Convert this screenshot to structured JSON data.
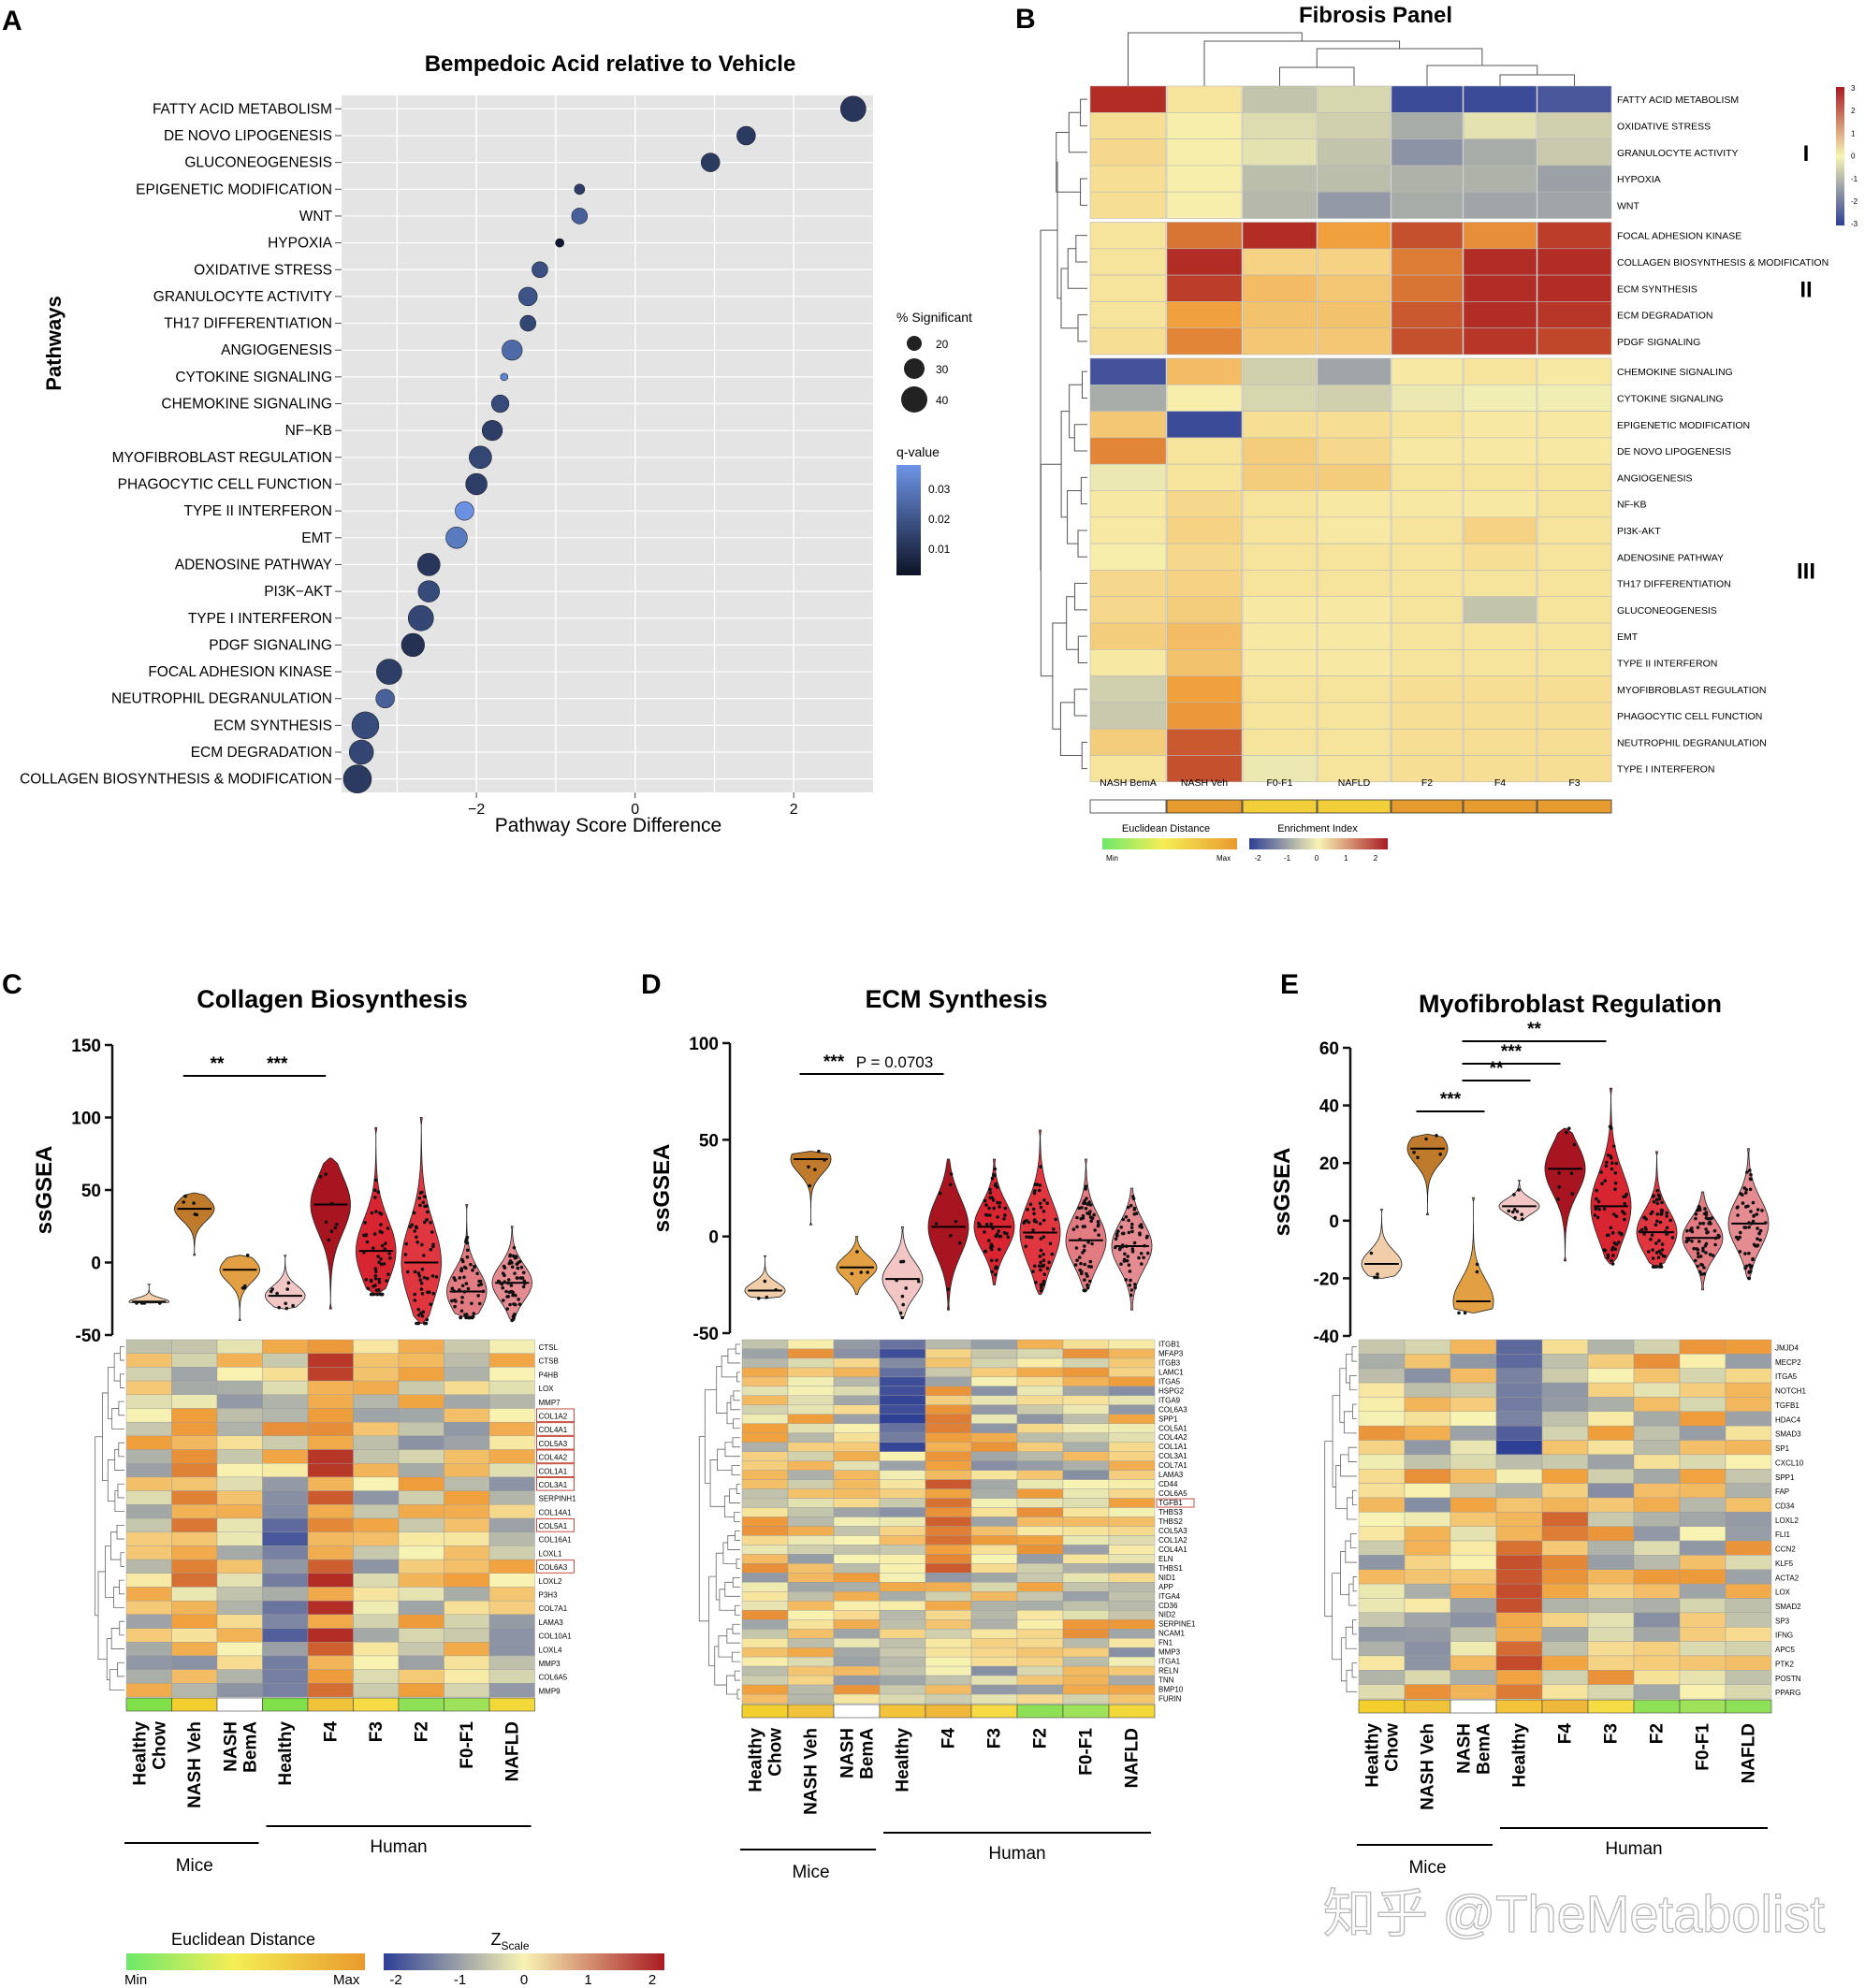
{
  "panelA": {
    "letter": "A",
    "chart_data": {
      "type": "scatter",
      "title": "Bempedoic Acid relative to Vehicle",
      "xlabel": "Pathway Score Difference",
      "ylabel": "Pathways",
      "xlim": [
        -3.7,
        3.0
      ],
      "xticks": [
        -2,
        0,
        2
      ],
      "xtick_labels": [
        "−2",
        "0",
        "2"
      ],
      "grid": true,
      "categories": [
        "FATTY ACID METABOLISM",
        "DE NOVO LIPOGENESIS",
        "GLUCONEOGENESIS",
        "EPIGENETIC MODIFICATION",
        "WNT",
        "HYPOXIA",
        "OXIDATIVE STRESS",
        "GRANULOCYTE ACTIVITY",
        "TH17 DIFFERENTIATION",
        "ANGIOGENESIS",
        "CYTOKINE SIGNALING",
        "CHEMOKINE SIGNALING",
        "NF−KB",
        "MYOFIBROBLAST REGULATION",
        "PHAGOCYTIC CELL FUNCTION",
        "TYPE II INTERFERON",
        "EMT",
        "ADENOSINE PATHWAY",
        "PI3K−AKT",
        "TYPE I INTERFERON",
        "PDGF SIGNALING",
        "FOCAL ADHESION KINASE",
        "NEUTROPHIL DEGRANULATION",
        "ECM SYNTHESIS",
        "ECM DEGRADATION",
        "COLLAGEN BIOSYNTHESIS & MODIFICATION"
      ],
      "x": [
        2.75,
        1.4,
        0.95,
        -0.7,
        -0.7,
        -0.95,
        -1.2,
        -1.35,
        -1.35,
        -1.55,
        -1.65,
        -1.7,
        -1.8,
        -1.95,
        -2.0,
        -2.15,
        -2.25,
        -2.6,
        -2.6,
        -2.7,
        -2.8,
        -3.1,
        -3.15,
        -3.4,
        -3.45,
        -3.5
      ],
      "pct_significant": [
        42,
        30,
        30,
        15,
        25,
        12,
        25,
        30,
        25,
        33,
        10,
        28,
        33,
        37,
        35,
        30,
        35,
        37,
        35,
        42,
        38,
        42,
        30,
        45,
        40,
        47
      ],
      "qvalue": [
        0.012,
        0.013,
        0.013,
        0.014,
        0.022,
        0.005,
        0.018,
        0.019,
        0.016,
        0.024,
        0.03,
        0.017,
        0.014,
        0.016,
        0.014,
        0.033,
        0.028,
        0.012,
        0.017,
        0.016,
        0.011,
        0.014,
        0.022,
        0.017,
        0.016,
        0.013
      ],
      "legend_size_title": "% Significant",
      "legend_size_values": [
        "20",
        "30",
        "40"
      ],
      "legend_color_title": "q-value",
      "legend_color_ticks": [
        "0.03",
        "0.02",
        "0.01"
      ],
      "legend_placement": "right"
    }
  },
  "panelB": {
    "letter": "B",
    "chart_data": {
      "type": "heatmap",
      "title": "Fibrosis Panel",
      "columns": [
        "NASH BemA",
        "NASH Veh",
        "F0-F1",
        "NAFLD",
        "F2",
        "F4",
        "F3"
      ],
      "rows": [
        "FATTY ACID METABOLISM",
        "OXIDATIVE STRESS",
        "GRANULOCYTE ACTIVITY",
        "HYPOXIA",
        "WNT",
        "FOCAL ADHESION KINASE",
        "COLLAGEN BIOSYNTHESIS & MODIFICATION",
        "ECM SYNTHESIS",
        "ECM DEGRADATION",
        "PDGF SIGNALING",
        "CHEMOKINE SIGNALING",
        "CYTOKINE SIGNALING",
        "EPIGENETIC MODIFICATION",
        "DE NOVO LIPOGENESIS",
        "ANGIOGENESIS",
        "NF-KB",
        "PI3K-AKT",
        "ADENOSINE PATHWAY",
        "TH17 DIFFERENTIATION",
        "GLUCONEOGENESIS",
        "EMT",
        "TYPE II INTERFERON",
        "MYOFIBROBLAST REGULATION",
        "PHAGOCYTIC CELL FUNCTION",
        "NEUTROPHIL DEGRANULATION",
        "TYPE I INTERFERON"
      ],
      "values": [
        [
          2.8,
          0.3,
          -0.8,
          -0.5,
          -2.8,
          -2.8,
          -2.6
        ],
        [
          0.4,
          0.1,
          -0.4,
          -0.6,
          -1.2,
          -0.3,
          -0.6
        ],
        [
          0.5,
          0.1,
          -0.3,
          -0.8,
          -1.6,
          -1.2,
          -0.7
        ],
        [
          0.4,
          0.1,
          -0.9,
          -0.9,
          -1.1,
          -1.1,
          -1.4
        ],
        [
          0.4,
          0.1,
          -1.0,
          -1.5,
          -1.2,
          -1.3,
          -1.3
        ],
        [
          0.3,
          2.0,
          2.8,
          1.5,
          2.4,
          1.7,
          2.6
        ],
        [
          0.3,
          2.8,
          0.6,
          0.6,
          1.9,
          2.8,
          2.8
        ],
        [
          0.3,
          2.6,
          1.0,
          0.8,
          2.0,
          2.8,
          2.8
        ],
        [
          0.3,
          1.5,
          0.9,
          0.9,
          2.3,
          2.8,
          2.7
        ],
        [
          0.4,
          1.8,
          0.8,
          0.8,
          2.4,
          2.7,
          2.5
        ],
        [
          -2.7,
          1.0,
          -0.6,
          -1.3,
          0.2,
          0.3,
          0.2
        ],
        [
          -1.2,
          0.1,
          -0.5,
          -0.6,
          -0.2,
          -0.1,
          -0.1
        ],
        [
          0.8,
          -2.8,
          0.4,
          0.4,
          0.3,
          0.2,
          0.2
        ],
        [
          1.8,
          0.3,
          0.7,
          0.5,
          0.2,
          0.2,
          0.2
        ],
        [
          -0.2,
          0.3,
          0.7,
          0.7,
          0.3,
          0.3,
          0.3
        ],
        [
          0.2,
          0.5,
          0.3,
          0.2,
          0.2,
          0.2,
          0.3
        ],
        [
          0.2,
          0.6,
          0.3,
          0.2,
          0.3,
          0.6,
          0.3
        ],
        [
          0.1,
          0.5,
          0.3,
          0.3,
          0.3,
          0.4,
          0.3
        ],
        [
          0.5,
          0.6,
          0.3,
          0.3,
          0.3,
          0.3,
          0.3
        ],
        [
          0.5,
          0.7,
          0.2,
          0.2,
          0.3,
          -0.8,
          0.3
        ],
        [
          0.7,
          1.0,
          0.2,
          0.2,
          0.3,
          0.3,
          0.3
        ],
        [
          0.2,
          0.9,
          0.2,
          0.2,
          0.3,
          0.3,
          0.3
        ],
        [
          -0.6,
          1.5,
          0.3,
          0.3,
          0.4,
          0.4,
          0.4
        ],
        [
          -0.7,
          1.6,
          0.3,
          0.3,
          0.4,
          0.4,
          0.4
        ],
        [
          0.7,
          2.3,
          0.3,
          0.3,
          0.4,
          0.4,
          0.4
        ],
        [
          0.3,
          2.4,
          -0.2,
          0.3,
          0.4,
          0.4,
          0.4
        ]
      ],
      "clusters": [
        {
          "label": "I",
          "rows": 5
        },
        {
          "label": "II",
          "rows": 5
        },
        {
          "label": "III",
          "rows": 16
        }
      ],
      "distance_colors": [
        "#ffffff",
        "#e69b2e",
        "#f2cf3a",
        "#f2cf3a",
        "#e69b2e",
        "#e69b2e",
        "#e69b2e"
      ],
      "legend_distance_title": "Euclidean Distance",
      "legend_distance_min": "Min",
      "legend_distance_max": "Max",
      "legend_enrich_title": "Enrichment Index",
      "legend_enrich_ticks": [
        "-2",
        "-1",
        "0",
        "1",
        "2"
      ],
      "colorbar_ticks": [
        "3",
        "2",
        "1",
        "0",
        "-1",
        "-2",
        "-3"
      ]
    }
  },
  "violin_panels": [
    {
      "letter": "C",
      "title": "Collagen Biosynthesis",
      "ylabel": "ssGSEA",
      "ylim": [
        -50,
        150
      ],
      "yticks": [
        -50,
        0,
        50,
        100,
        150
      ],
      "groups": [
        "Healthy Chow",
        "NASH Veh",
        "NASH BemA",
        "Healthy",
        "F4",
        "F3",
        "F2",
        "F0-F1",
        "NAFLD"
      ],
      "group_labels": [
        [
          "Healthy",
          "Chow"
        ],
        [
          "NASH Veh"
        ],
        [
          "NASH",
          "BemA"
        ],
        [
          "Healthy"
        ],
        [
          "F4"
        ],
        [
          "F3"
        ],
        [
          "F2"
        ],
        [
          "F0-F1"
        ],
        [
          "NAFLD"
        ]
      ],
      "median": [
        -27,
        37,
        -5,
        -23,
        40,
        8,
        0,
        -20,
        -14
      ],
      "min": [
        -28,
        5,
        -40,
        -32,
        -32,
        -22,
        -42,
        -38,
        -40
      ],
      "max": [
        -15,
        48,
        5,
        5,
        72,
        93,
        100,
        40,
        25
      ],
      "counts": [
        4,
        5,
        4,
        9,
        8,
        55,
        70,
        60,
        65
      ],
      "colors": [
        "#f2cda9",
        "#c07a2b",
        "#e3a042",
        "#f3c6c6",
        "#a8141f",
        "#d92531",
        "#e03640",
        "#e27b82",
        "#e58b92"
      ],
      "significance": [
        {
          "from": 1,
          "to": 2,
          "label": "**"
        },
        {
          "from": 2,
          "to": 4,
          "label": "***"
        }
      ],
      "heatmap_genes": [
        "CTSL",
        "CTSB",
        "P4HB",
        "LOX",
        "MMP7",
        "COL1A2",
        "COL4A1",
        "COL5A3",
        "COL4A2",
        "COL1A1",
        "COL3A1",
        "SERPINH1",
        "COL14A1",
        "COL5A1",
        "COL16A1",
        "LOXL1",
        "COL6A3",
        "LOXL2",
        "P3H3",
        "COL7A1",
        "LAMA3",
        "COL10A1",
        "LOXL4",
        "MMP3",
        "COL6A5",
        "MMP9"
      ],
      "boxed_genes": [
        "COL1A2",
        "COL4A1",
        "COL5A3",
        "COL4A2",
        "COL1A1",
        "COL3A1",
        "COL5A1",
        "COL6A3"
      ],
      "distance_colors": [
        "#7fe04a",
        "#f3cf2e",
        "#ffffff",
        "#7fe04a",
        "#f0c33a",
        "#f5dc45",
        "#8ee056",
        "#9ee25a",
        "#f3d83a"
      ],
      "seed": 11
    },
    {
      "letter": "D",
      "title": "ECM Synthesis",
      "ylabel": "ssGSEA",
      "ylim": [
        -50,
        100
      ],
      "yticks": [
        -50,
        0,
        50,
        100
      ],
      "groups": [
        "Healthy Chow",
        "NASH Veh",
        "NASH BemA",
        "Healthy",
        "F4",
        "F3",
        "F2",
        "F0-F1",
        "NAFLD"
      ],
      "group_labels": [
        [
          "Healthy",
          "Chow"
        ],
        [
          "NASH Veh"
        ],
        [
          "NASH",
          "BemA"
        ],
        [
          "Healthy"
        ],
        [
          "F4"
        ],
        [
          "F3"
        ],
        [
          "F2"
        ],
        [
          "F0-F1"
        ],
        [
          "NAFLD"
        ]
      ],
      "median": [
        -28,
        40,
        -16,
        -22,
        5,
        5,
        2,
        -2,
        -5
      ],
      "min": [
        -32,
        6,
        -30,
        -42,
        -38,
        -25,
        -30,
        -28,
        -38
      ],
      "max": [
        -10,
        44,
        0,
        5,
        40,
        40,
        55,
        40,
        25
      ],
      "counts": [
        4,
        5,
        4,
        9,
        8,
        55,
        70,
        60,
        65
      ],
      "colors": [
        "#f2cda9",
        "#c07a2b",
        "#e3a042",
        "#f3c6c6",
        "#a8141f",
        "#d92531",
        "#e03640",
        "#e27b82",
        "#e58b92"
      ],
      "significance": [
        {
          "from": 1,
          "to": 2,
          "label": "***"
        },
        {
          "from": 2,
          "to": 4,
          "label": "P = 0.0703"
        }
      ],
      "heatmap_genes": [
        "ITGB1",
        "MFAP3",
        "ITGB3",
        "LAMC1",
        "ITGA5",
        "HSPG2",
        "ITGA9",
        "COL6A3",
        "SPP1",
        "COL5A1",
        "COL4A2",
        "COL1A1",
        "COL3A1",
        "COL7A1",
        "LAMA3",
        "CD44",
        "COL6A5",
        "TGFB1",
        "THBS3",
        "THBS2",
        "COL5A3",
        "COL1A2",
        "COL4A1",
        "ELN",
        "THBS1",
        "NID1",
        "APP",
        "ITGA4",
        "CD36",
        "NID2",
        "SERPINE1",
        "NCAM1",
        "FN1",
        "MMP3",
        "ITGA1",
        "RELN",
        "TNN",
        "BMP10",
        "FURIN"
      ],
      "boxed_genes": [
        "TGFB1"
      ],
      "distance_colors": [
        "#f3cf2e",
        "#f0c33a",
        "#ffffff",
        "#f3c43a",
        "#f0b83a",
        "#f5dc45",
        "#8ee056",
        "#9ee25a",
        "#f3d83a"
      ],
      "seed": 23
    },
    {
      "letter": "E",
      "title": "Myofibroblast Regulation",
      "ylabel": "ssGSEA",
      "ylim": [
        -40,
        60
      ],
      "yticks": [
        -40,
        -20,
        0,
        20,
        40,
        60
      ],
      "groups": [
        "Healthy Chow",
        "NASH Veh",
        "NASH BemA",
        "Healthy",
        "F4",
        "F3",
        "F2",
        "F0-F1",
        "NAFLD"
      ],
      "group_labels": [
        [
          "Healthy",
          "Chow"
        ],
        [
          "NASH Veh"
        ],
        [
          "NASH",
          "BemA"
        ],
        [
          "Healthy"
        ],
        [
          "F4"
        ],
        [
          "F3"
        ],
        [
          "F2"
        ],
        [
          "F0-F1"
        ],
        [
          "NAFLD"
        ]
      ],
      "median": [
        -15,
        25,
        -28,
        5,
        18,
        5,
        -4,
        -6,
        -1
      ],
      "min": [
        -20,
        2,
        -32,
        0,
        -14,
        -15,
        -16,
        -24,
        -20
      ],
      "max": [
        4,
        30,
        8,
        14,
        32,
        46,
        24,
        10,
        25
      ],
      "counts": [
        4,
        5,
        4,
        9,
        8,
        55,
        70,
        60,
        65
      ],
      "colors": [
        "#f2cda9",
        "#c07a2b",
        "#e3a042",
        "#f3c6c6",
        "#a8141f",
        "#d92531",
        "#e03640",
        "#e27b82",
        "#e58b92"
      ],
      "significance": [
        {
          "from": 1,
          "to": 2,
          "label": "***"
        },
        {
          "from": 2,
          "to": 3,
          "label": "**"
        },
        {
          "from": 2,
          "to": 4,
          "label": "***"
        },
        {
          "from": 2,
          "to": 5,
          "label": "**"
        }
      ],
      "heatmap_genes": [
        "JMJD4",
        "MECP2",
        "ITGA5",
        "NOTCH1",
        "TGFB1",
        "HDAC4",
        "SMAD3",
        "SP1",
        "CXCL10",
        "SPP1",
        "FAP",
        "CD34",
        "LOXL2",
        "FLI1",
        "CCN2",
        "KLF5",
        "ACTA2",
        "LOX",
        "SMAD2",
        "SP3",
        "IFNG",
        "APC5",
        "PTK2",
        "POSTN",
        "PPARG"
      ],
      "boxed_genes": [],
      "distance_colors": [
        "#f3cf2e",
        "#f0c33a",
        "#ffffff",
        "#f3c43a",
        "#f0b83a",
        "#f5dc45",
        "#8ee056",
        "#9ee25a",
        "#8ee056"
      ],
      "seed": 37
    }
  ],
  "group_brackets": {
    "mice": "Mice",
    "human": "Human"
  },
  "bottom_legend": {
    "distance_title": "Euclidean Distance",
    "distance_min": "Min",
    "distance_max": "Max",
    "z_title": "Z",
    "z_subscript": "Scale",
    "z_ticks": [
      "-2",
      "-1",
      "0",
      "1",
      "2"
    ]
  },
  "watermark": "知乎 @TheMetabolist",
  "colors": {
    "heat_low": "#2e3f96",
    "heat_mid": "#f8f4b4",
    "heat_high": "#a91b23",
    "plot_bg": "#e4e4e4",
    "qvalue_low": "#0d1326",
    "qvalue_high": "#6f95e8"
  }
}
